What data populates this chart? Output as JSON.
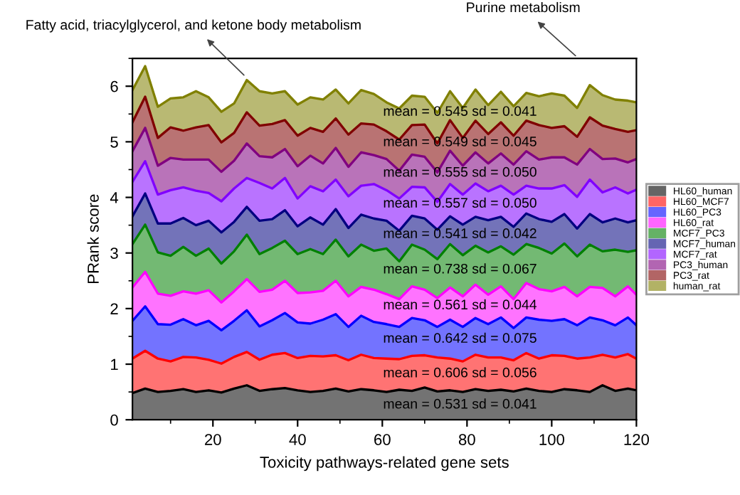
{
  "chart_data": {
    "type": "area",
    "stacked": true,
    "xlabel": "Toxicity pathways-related gene sets",
    "ylabel": "PRank score",
    "x": [
      1,
      4,
      7,
      10,
      13,
      16,
      19,
      22,
      25,
      28,
      31,
      34,
      37,
      40,
      43,
      46,
      49,
      52,
      55,
      58,
      61,
      64,
      67,
      70,
      73,
      76,
      79,
      82,
      85,
      88,
      91,
      94,
      97,
      100,
      103,
      106,
      109,
      112,
      115,
      118,
      120
    ],
    "xlim": [
      1,
      120
    ],
    "xticks": [
      20,
      40,
      60,
      80,
      100,
      120
    ],
    "ylim": [
      0,
      6.5
    ],
    "yticks": [
      0,
      1,
      2,
      3,
      4,
      5,
      6
    ],
    "grid": false,
    "legend": "right",
    "series": [
      {
        "name": "HL60_human",
        "color": "#000000",
        "values": [
          0.48,
          0.56,
          0.5,
          0.52,
          0.55,
          0.5,
          0.53,
          0.49,
          0.56,
          0.62,
          0.52,
          0.55,
          0.57,
          0.53,
          0.5,
          0.52,
          0.56,
          0.51,
          0.55,
          0.53,
          0.5,
          0.54,
          0.52,
          0.58,
          0.51,
          0.53,
          0.5,
          0.55,
          0.52,
          0.54,
          0.51,
          0.56,
          0.52,
          0.5,
          0.55,
          0.53,
          0.5,
          0.62,
          0.52,
          0.56,
          0.53
        ]
      },
      {
        "name": "HL60_MCF7",
        "color": "#ff0000",
        "values": [
          0.62,
          0.68,
          0.6,
          0.53,
          0.58,
          0.62,
          0.55,
          0.52,
          0.57,
          0.6,
          0.56,
          0.62,
          0.63,
          0.58,
          0.65,
          0.62,
          0.6,
          0.56,
          0.62,
          0.58,
          0.6,
          0.55,
          0.63,
          0.58,
          0.61,
          0.57,
          0.55,
          0.62,
          0.6,
          0.58,
          0.56,
          0.64,
          0.58,
          0.66,
          0.6,
          0.57,
          0.62,
          0.55,
          0.6,
          0.62,
          0.57
        ]
      },
      {
        "name": "HL60_PC3",
        "color": "#0000ff",
        "values": [
          0.68,
          0.8,
          0.62,
          0.66,
          0.68,
          0.58,
          0.7,
          0.6,
          0.65,
          0.75,
          0.6,
          0.62,
          0.72,
          0.64,
          0.58,
          0.66,
          0.74,
          0.6,
          0.7,
          0.65,
          0.62,
          0.58,
          0.68,
          0.63,
          0.55,
          0.7,
          0.62,
          0.66,
          0.6,
          0.72,
          0.58,
          0.64,
          0.7,
          0.62,
          0.66,
          0.6,
          0.72,
          0.62,
          0.58,
          0.66,
          0.6
        ]
      },
      {
        "name": "HL60_rat",
        "color": "#ff00ff",
        "values": [
          0.6,
          0.62,
          0.55,
          0.52,
          0.5,
          0.57,
          0.55,
          0.5,
          0.53,
          0.56,
          0.62,
          0.55,
          0.58,
          0.53,
          0.56,
          0.52,
          0.6,
          0.55,
          0.52,
          0.58,
          0.54,
          0.5,
          0.57,
          0.55,
          0.52,
          0.58,
          0.55,
          0.6,
          0.53,
          0.56,
          0.52,
          0.62,
          0.55,
          0.53,
          0.58,
          0.52,
          0.55,
          0.58,
          0.52,
          0.56,
          0.55
        ]
      },
      {
        "name": "MCF7_PC3",
        "color": "#008000",
        "values": [
          0.78,
          0.85,
          0.74,
          0.72,
          0.8,
          0.68,
          0.75,
          0.7,
          0.72,
          0.8,
          0.68,
          0.75,
          0.72,
          0.7,
          0.78,
          0.66,
          0.74,
          0.72,
          0.76,
          0.7,
          0.82,
          0.68,
          0.75,
          0.72,
          0.7,
          0.78,
          0.74,
          0.7,
          0.76,
          0.72,
          0.8,
          0.7,
          0.74,
          0.68,
          0.78,
          0.72,
          0.76,
          0.66,
          0.84,
          0.62,
          0.8
        ]
      },
      {
        "name": "MCF7_human",
        "color": "#000080",
        "values": [
          0.5,
          0.56,
          0.52,
          0.58,
          0.52,
          0.55,
          0.5,
          0.56,
          0.53,
          0.5,
          0.6,
          0.52,
          0.55,
          0.5,
          0.57,
          0.53,
          0.55,
          0.51,
          0.54,
          0.58,
          0.5,
          0.55,
          0.52,
          0.56,
          0.53,
          0.5,
          0.55,
          0.52,
          0.58,
          0.53,
          0.5,
          0.55,
          0.52,
          0.57,
          0.53,
          0.5,
          0.55,
          0.52,
          0.56,
          0.53,
          0.54
        ]
      },
      {
        "name": "MCF7_rat",
        "color": "#8000ff",
        "values": [
          0.62,
          0.58,
          0.52,
          0.6,
          0.55,
          0.62,
          0.5,
          0.56,
          0.6,
          0.52,
          0.68,
          0.55,
          0.58,
          0.5,
          0.56,
          0.6,
          0.53,
          0.57,
          0.52,
          0.62,
          0.55,
          0.58,
          0.52,
          0.56,
          0.5,
          0.58,
          0.54,
          0.6,
          0.52,
          0.56,
          0.58,
          0.5,
          0.55,
          0.6,
          0.52,
          0.57,
          0.62,
          0.54,
          0.56,
          0.52,
          0.55
        ]
      },
      {
        "name": "PC3_human",
        "color": "#800080",
        "values": [
          0.55,
          0.6,
          0.52,
          0.58,
          0.5,
          0.56,
          0.6,
          0.53,
          0.5,
          0.62,
          0.48,
          0.56,
          0.52,
          0.58,
          0.55,
          0.5,
          0.57,
          0.53,
          0.6,
          0.52,
          0.56,
          0.5,
          0.58,
          0.55,
          0.53,
          0.6,
          0.52,
          0.56,
          0.5,
          0.58,
          0.54,
          0.62,
          0.52,
          0.56,
          0.5,
          0.58,
          0.55,
          0.6,
          0.52,
          0.56,
          0.55
        ]
      },
      {
        "name": "PC3_rat",
        "color": "#800000",
        "values": [
          0.52,
          0.56,
          0.5,
          0.55,
          0.52,
          0.58,
          0.62,
          0.53,
          0.5,
          0.56,
          0.55,
          0.6,
          0.52,
          0.55,
          0.5,
          0.57,
          0.53,
          0.58,
          0.52,
          0.55,
          0.5,
          0.56,
          0.53,
          0.58,
          0.52,
          0.55,
          0.5,
          0.57,
          0.53,
          0.56,
          0.52,
          0.55,
          0.62,
          0.53,
          0.56,
          0.5,
          0.57,
          0.6,
          0.53,
          0.55,
          0.52
        ]
      },
      {
        "name": "human_rat",
        "color": "#808000",
        "values": [
          0.58,
          0.55,
          0.56,
          0.52,
          0.6,
          0.65,
          0.5,
          0.55,
          0.53,
          0.58,
          0.62,
          0.55,
          0.52,
          0.56,
          0.55,
          0.58,
          0.52,
          0.56,
          0.6,
          0.55,
          0.52,
          0.56,
          0.53,
          0.5,
          0.55,
          0.52,
          0.54,
          0.56,
          0.52,
          0.55,
          0.53,
          0.5,
          0.52,
          0.62,
          0.55,
          0.52,
          0.58,
          0.55,
          0.53,
          0.56,
          0.5
        ]
      }
    ],
    "annotations": [
      {
        "text": "Fatty acid, triacylglycerol, and ketone body metabolism",
        "x": 28,
        "y": 6.15
      },
      "Purine metabolism",
      "mean = 0.545 sd = 0.041",
      "mean = 0.549 sd = 0.045",
      "mean = 0.555 sd = 0.050",
      "mean = 0.557 sd = 0.050",
      "mean = 0.541 sd = 0.042",
      "mean = 0.738 sd = 0.067",
      "mean = 0.561 sd = 0.044",
      "mean = 0.642 sd = 0.075",
      "mean = 0.606 sd = 0.056",
      "mean = 0.531 sd = 0.041"
    ]
  }
}
